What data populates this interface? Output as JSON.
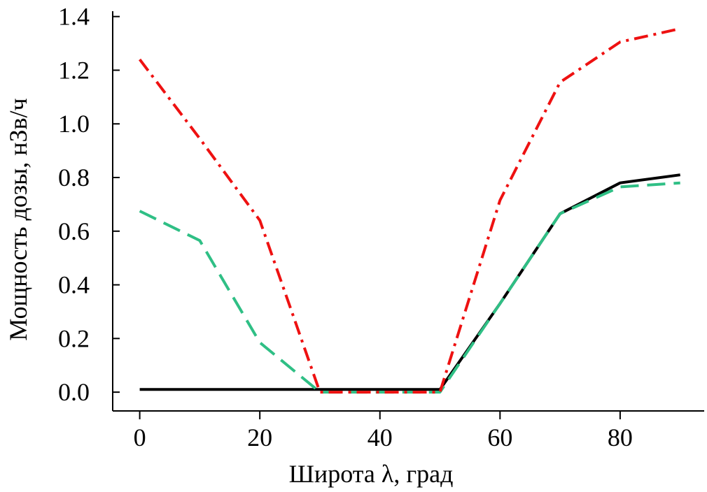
{
  "chart_data": {
    "type": "line",
    "title": "",
    "xlabel": "Широта λ, град",
    "ylabel": "Мощность дозы, нЗв/ч",
    "xlim": [
      -4.5,
      94
    ],
    "ylim": [
      -0.07,
      1.42
    ],
    "xticks": [
      0,
      20,
      40,
      60,
      80
    ],
    "xtick_labels": [
      "0",
      "20",
      "40",
      "60",
      "80"
    ],
    "yticks": [
      0.0,
      0.2,
      0.4,
      0.6,
      0.8,
      1.0,
      1.2,
      1.4
    ],
    "ytick_labels": [
      "0.0",
      "0.2",
      "0.4",
      "0.6",
      "0.8",
      "1.0",
      "1.2",
      "1.4"
    ],
    "grid": false,
    "series": [
      {
        "name": "series-black-solid",
        "color": "#000000",
        "dash": "solid",
        "x": [
          0,
          10,
          20,
          30,
          40,
          50,
          60,
          70,
          80,
          90
        ],
        "y": [
          0.01,
          0.01,
          0.01,
          0.01,
          0.01,
          0.01,
          0.33,
          0.665,
          0.78,
          0.81
        ]
      },
      {
        "name": "series-green-dashed",
        "color": "#2fbf85",
        "dash": "dashed",
        "x": [
          0,
          10,
          20,
          30,
          40,
          50,
          60,
          70,
          80,
          90
        ],
        "y": [
          0.675,
          0.565,
          0.185,
          0.0,
          0.0,
          0.0,
          0.33,
          0.665,
          0.765,
          0.78
        ]
      },
      {
        "name": "series-red-dashdot",
        "color": "#ee1111",
        "dash": "dashdot",
        "x": [
          0,
          10,
          20,
          30,
          40,
          50,
          60,
          70,
          80,
          90
        ],
        "y": [
          1.24,
          0.945,
          0.64,
          0.0,
          0.0,
          0.0,
          0.715,
          1.155,
          1.305,
          1.355
        ]
      }
    ]
  }
}
